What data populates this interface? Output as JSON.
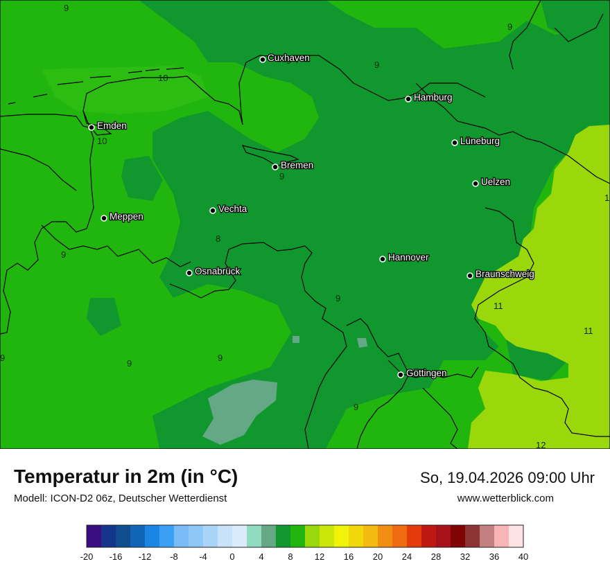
{
  "header": {
    "title": "Temperatur in 2m (in °C)",
    "model": "Modell: ICON-D2 06z, Deutscher Wetterdienst",
    "datetime": "So, 19.04.2026 09:00 Uhr",
    "website": "www.wetterblick.com"
  },
  "cities": [
    {
      "name": "Cuxhaven"
    },
    {
      "name": "Hamburg"
    },
    {
      "name": "Emden"
    },
    {
      "name": "Lüneburg"
    },
    {
      "name": "Bremen"
    },
    {
      "name": "Uelzen"
    },
    {
      "name": "Vechta"
    },
    {
      "name": "Meppen"
    },
    {
      "name": "Hannover"
    },
    {
      "name": "Osnabrück"
    },
    {
      "name": "Braunschweig"
    },
    {
      "name": "Göttingen"
    }
  ],
  "iso_labels": [
    "9",
    "9",
    "9",
    "10",
    "10",
    "9",
    "9",
    "8",
    "9",
    "9",
    "9",
    "11",
    "11",
    "9",
    "9",
    "9",
    "12",
    "1"
  ],
  "legend": {
    "colors": [
      "#3a0d82",
      "#14358a",
      "#0f4d8f",
      "#1265b6",
      "#1a85e3",
      "#3aa0f5",
      "#7bbcf7",
      "#8ec8f7",
      "#a9d4f7",
      "#c8e2fa",
      "#dcebfb",
      "#91dcc1",
      "#64a885",
      "#10982e",
      "#21b60e",
      "#9ad80b",
      "#cbe60a",
      "#f2f30a",
      "#f1d80c",
      "#f3bb10",
      "#f18f12",
      "#ef6c11",
      "#e53a0c",
      "#bd1812",
      "#a6111a",
      "#800404",
      "#8c3434",
      "#c37e7f",
      "#f9b5b5",
      "#fde2e4"
    ],
    "ticks": [
      "-20",
      "-16",
      "-12",
      "-8",
      "-4",
      "0",
      "4",
      "8",
      "12",
      "16",
      "20",
      "24",
      "28",
      "32",
      "36",
      "40"
    ]
  }
}
